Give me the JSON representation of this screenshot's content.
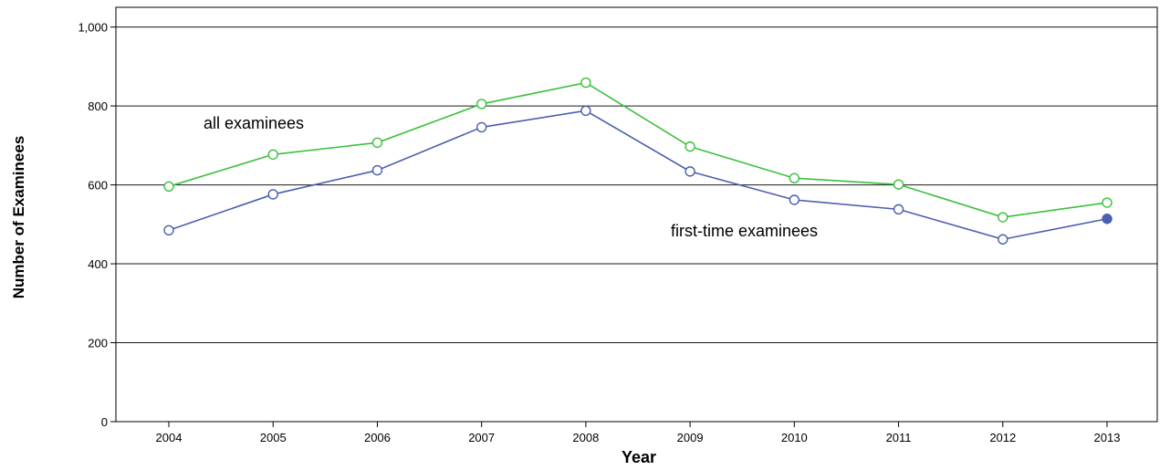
{
  "chart_data": {
    "type": "line",
    "title": "",
    "xlabel": "Year",
    "ylabel": "Number of Examinees",
    "x": [
      "2004",
      "2005",
      "2006",
      "2007",
      "2008",
      "2009",
      "2010",
      "2011",
      "2012",
      "2013"
    ],
    "ylim": [
      0,
      1050
    ],
    "yticks": [
      0,
      200,
      400,
      600,
      800,
      1000
    ],
    "ytick_labels": [
      "0",
      "200",
      "400",
      "600",
      "800",
      "1,000"
    ],
    "grid": "horizontal",
    "legend": "none",
    "series": [
      {
        "name": "all examinees",
        "color": "#3cbf3c",
        "values": [
          596,
          677,
          707,
          805,
          859,
          697,
          617,
          601,
          518,
          555
        ]
      },
      {
        "name": "first-time examinees",
        "color": "#4a5fae",
        "values": [
          485,
          576,
          637,
          746,
          788,
          634,
          562,
          538,
          462,
          514
        ]
      }
    ],
    "annotations": [
      {
        "text": "all examinees",
        "series": 0
      },
      {
        "text": "first-time examinees",
        "series": 1
      }
    ]
  }
}
